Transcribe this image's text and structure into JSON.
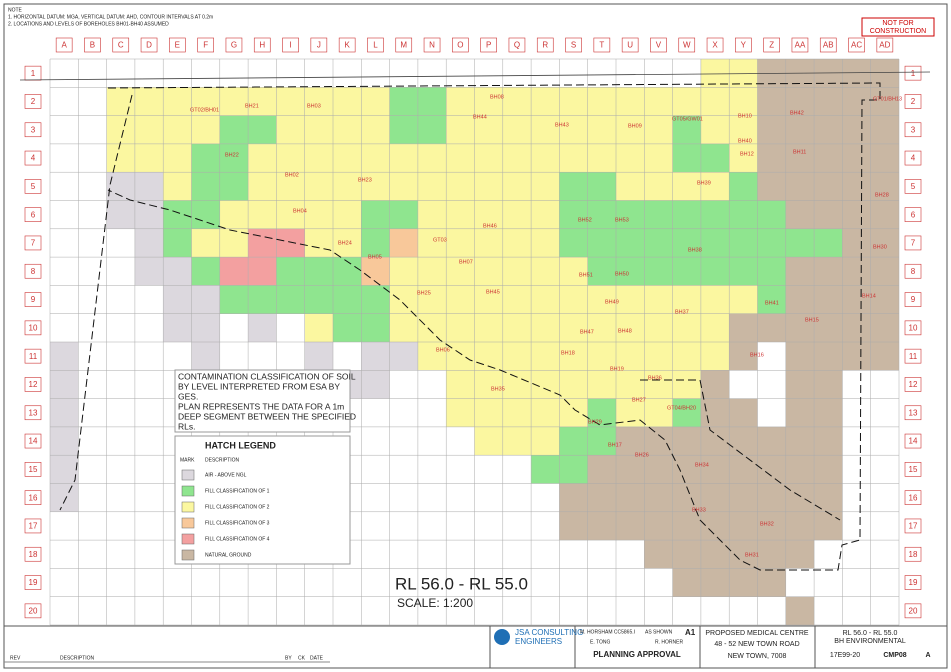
{
  "drawing": {
    "notes": [
      "NOTE",
      "1. HORIZONTAL DATUM: MGA, VERTICAL DATUM: AHD, CONTOUR INTERVALS AT 0.2m",
      "2. LOCATIONS AND LEVELS OF BOREHOLES BH01-BH40 ASSUMED"
    ],
    "stamp": [
      "NOT FOR",
      "CONSTRUCTION"
    ],
    "columns": [
      "A",
      "B",
      "C",
      "D",
      "E",
      "F",
      "G",
      "H",
      "I",
      "J",
      "K",
      "L",
      "M",
      "N",
      "O",
      "P",
      "Q",
      "R",
      "S",
      "T",
      "U",
      "V",
      "W",
      "X",
      "Y",
      "Z",
      "AA",
      "AB",
      "AC",
      "AD"
    ],
    "rows": [
      1,
      2,
      3,
      4,
      5,
      6,
      7,
      8,
      9,
      10,
      11,
      12,
      13,
      14,
      15,
      16,
      17,
      18,
      19,
      20
    ],
    "boreholes": [
      "GT02/BH01",
      "BH21",
      "BH03",
      "BH08",
      "BH44",
      "BH43",
      "BH09",
      "GT05/GW01",
      "BH10",
      "BH42",
      "GT01/BH13",
      "BH22",
      "BH02",
      "BH23",
      "BH04",
      "BH24",
      "GT03",
      "BH05",
      "BH07",
      "BH25",
      "BH06",
      "BH45",
      "BH46",
      "BH52",
      "BH53",
      "BH39",
      "BH38",
      "BH51",
      "BH50",
      "BH49",
      "BH47",
      "BH48",
      "BH18",
      "BH19",
      "BH27",
      "BH29",
      "BH17",
      "BH26",
      "GT04/BH20",
      "BH35",
      "BH37",
      "BH36",
      "BH16",
      "BH14",
      "BH15",
      "BH11",
      "BH12",
      "BH41",
      "BH30",
      "BH28",
      "BH34",
      "BH33",
      "BH32",
      "BH31",
      "BH40"
    ],
    "note_text": [
      "CONTAMINATION CLASSIFICATION OF SOIL",
      "BY LEVEL INTERPRETED FROM ESA BY",
      "GES.",
      "PLAN REPRESENTS THE DATA FOR A 1m",
      "DEEP SEGMENT BETWEEN THE SPECIFIED",
      "RLs."
    ],
    "legend": {
      "title": "HATCH LEGEND",
      "headers": [
        "MARK",
        "DESCRIPTION"
      ],
      "items": [
        "AIR - ABOVE NGL",
        "FILL CLASSIFICATION OF 1",
        "FILL CLASSIFICATION OF 2",
        "FILL CLASSIFICATION OF 3",
        "FILL CLASSIFICATION OF 4",
        "NATURAL GROUND"
      ]
    },
    "level": "RL 56.0 - RL 55.0",
    "scale": "SCALE:  1:200"
  },
  "title_block": {
    "revision_headers": [
      "REV",
      "DESCRIPTION",
      "BY",
      "CK",
      "DATE"
    ],
    "company": [
      "JSA CONSULTING",
      "ENGINEERS"
    ],
    "drawn": "M. HORSHAM CC5865.I",
    "scale": "AS SHOWN",
    "size": "A1",
    "designed": "E. TONG",
    "checked": "R. HORNER",
    "status": "PLANNING APPROVAL",
    "project": [
      "PROPOSED MEDICAL CENTRE",
      "48 - 52 NEW TOWN ROAD",
      "NEW TOWN, 7008"
    ],
    "sheet_title": [
      "RL 56.0 - RL 55.0",
      "BH ENVIRONMENTAL"
    ],
    "project_no": "17E99-20",
    "drawing_no": "CMP08",
    "revision": "A"
  }
}
